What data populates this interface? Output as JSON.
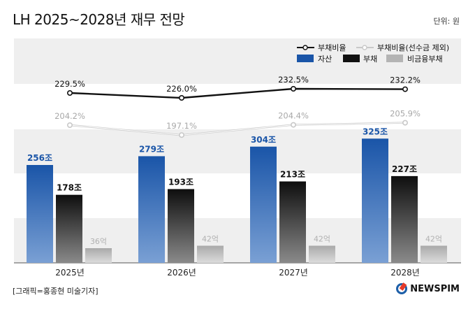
{
  "header": {
    "title": "LH 2025~2028년 재무 전망",
    "unit": "단위: 원"
  },
  "footer": {
    "credit": "[그래픽=홍종현 미술기자]",
    "logo": "NEWSPIM"
  },
  "colors": {
    "asset": "#1a55a8",
    "debt": "#111111",
    "nonfin": "#b4b4b4",
    "ratio_line": "#111111",
    "ratio2_line": "#c8c8c8",
    "band": "#efefef"
  },
  "chart_data": {
    "type": "bar",
    "categories": [
      "2025년",
      "2026년",
      "2027년",
      "2028년"
    ],
    "series": [
      {
        "name": "자산",
        "values": [
          256,
          279,
          304,
          325
        ],
        "labels": [
          "256조",
          "279조",
          "304조",
          "325조"
        ]
      },
      {
        "name": "부채",
        "values": [
          178,
          193,
          213,
          227
        ],
        "labels": [
          "178조",
          "193조",
          "213조",
          "227조"
        ]
      },
      {
        "name": "비금융부채",
        "values": [
          36,
          42,
          42,
          42
        ],
        "labels": [
          "36억",
          "42억",
          "42억",
          "42억"
        ]
      }
    ],
    "lines": [
      {
        "name": "부채비율",
        "values": [
          229.5,
          226.0,
          232.5,
          232.2
        ],
        "labels": [
          "229.5%",
          "226.0%",
          "232.5%",
          "232.2%"
        ]
      },
      {
        "name": "부채비율(선수금 제외)",
        "values": [
          204.2,
          197.1,
          204.4,
          205.9
        ],
        "labels": [
          "204.2%",
          "197.1%",
          "204.4%",
          "205.9%"
        ]
      }
    ],
    "legend": [
      "부채비율",
      "부채비율(선수금 제외)",
      "자산",
      "부채",
      "비금융부채"
    ]
  }
}
